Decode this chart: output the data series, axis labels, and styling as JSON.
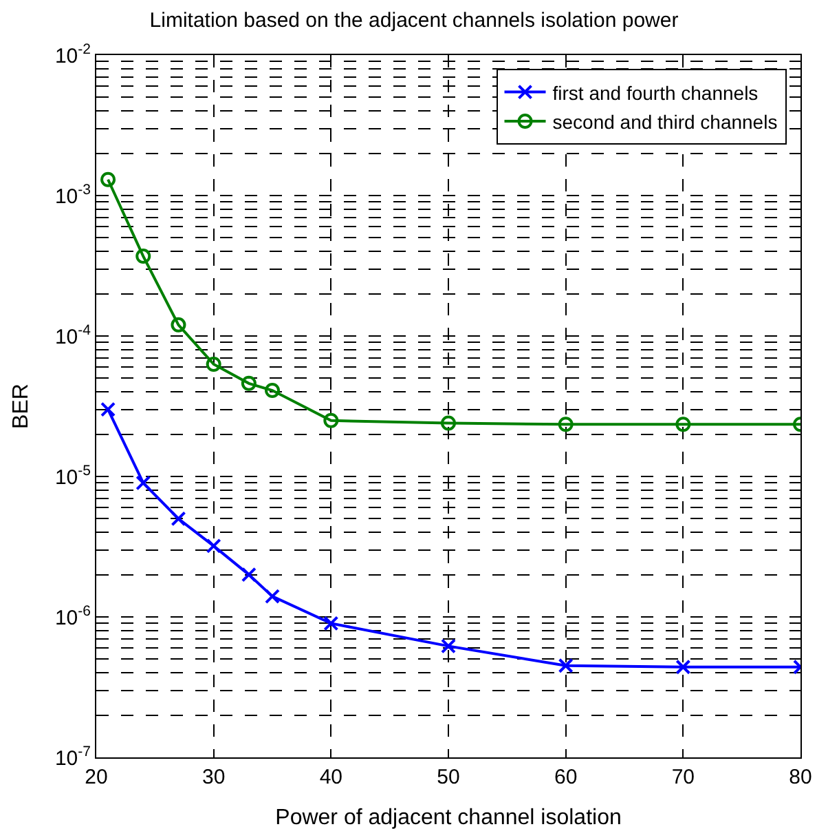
{
  "chart_data": {
    "type": "line",
    "title": "Limitation based on the adjacent channels isolation power",
    "xlabel": "Power of adjacent channel isolation",
    "ylabel": "BER",
    "x": [
      21,
      24,
      27,
      30,
      33,
      35,
      40,
      50,
      60,
      70,
      80
    ],
    "series": [
      {
        "name": "first and fourth channels",
        "color": "#0000ff",
        "marker": "cross",
        "values": [
          3e-05,
          9e-06,
          5e-06,
          3.2e-06,
          2e-06,
          1.4e-06,
          9e-07,
          6.2e-07,
          4.5e-07,
          4.4e-07,
          4.4e-07
        ]
      },
      {
        "name": "second and third channels",
        "color": "#008000",
        "marker": "circle",
        "values": [
          0.0013,
          0.00037,
          0.00012,
          6.3e-05,
          4.6e-05,
          4.1e-05,
          2.5e-05,
          2.4e-05,
          2.35e-05,
          2.35e-05,
          2.35e-05
        ]
      }
    ],
    "log": "y",
    "grid": true,
    "legend": "top right",
    "line_style": "solid",
    "xlim": [
      20,
      80
    ],
    "xticks": [
      20,
      30,
      40,
      50,
      60,
      70,
      80
    ],
    "ylim": [
      1e-07,
      0.01
    ],
    "yticks": [
      {
        "value": 1e-07,
        "label": "10$^{-7}$"
      },
      {
        "value": 1e-06,
        "label": "10$^{-6}$"
      },
      {
        "value": 1e-05,
        "label": "10$^{-5}$"
      },
      {
        "value": 0.0001,
        "label": "10$^{-4}$"
      },
      {
        "value": 0.001,
        "label": "10$^{-3}$"
      },
      {
        "value": 0.01,
        "label": "10$^{-2}$"
      }
    ]
  }
}
